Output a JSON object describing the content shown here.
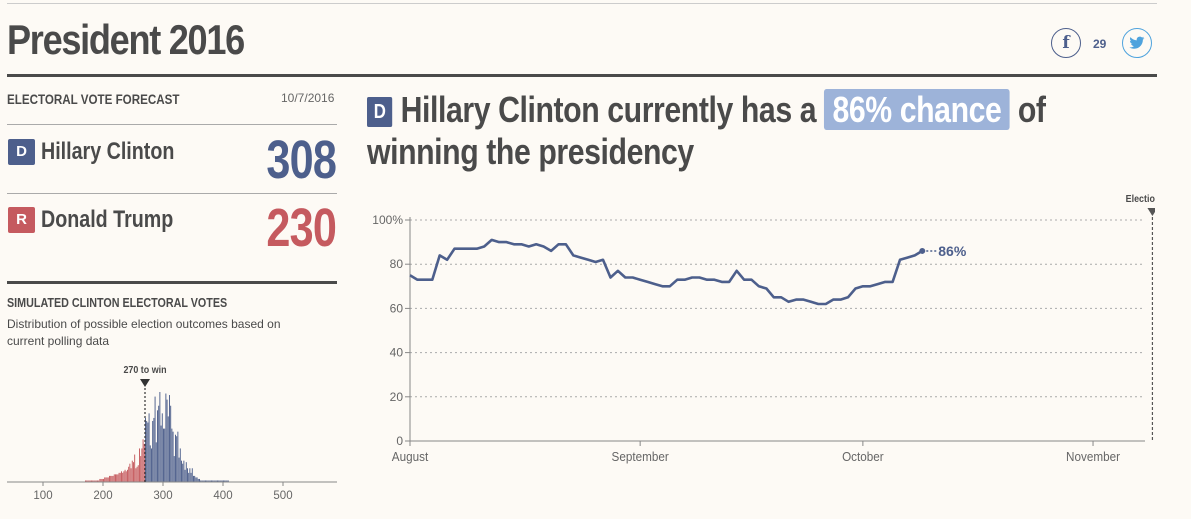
{
  "page": {
    "title": "President 2016"
  },
  "social": {
    "facebook_icon": "facebook-icon",
    "facebook_count": "29",
    "twitter_icon": "twitter-icon",
    "facebook_glyph": "f",
    "twitter_glyph": "🐦"
  },
  "forecast": {
    "label": "ELECTORAL VOTE FORECAST",
    "date": "10/7/2016",
    "candidates": [
      {
        "party": "D",
        "name": "Hillary Clinton",
        "votes": "308",
        "color": "#4d5f8c"
      },
      {
        "party": "R",
        "name": "Donald Trump",
        "votes": "230",
        "color": "#c55a5f"
      }
    ]
  },
  "simulation": {
    "label": "SIMULATED CLINTON ELECTORAL VOTES",
    "description": "Distribution of possible election outcomes based on current polling data",
    "marker_label": "270 to win"
  },
  "headline": {
    "badge": "D",
    "before": "Hillary Clinton currently has a",
    "chance": "86% chance",
    "after": "of winning the presidency"
  },
  "chart_data": [
    {
      "type": "line",
      "title": "Hillary Clinton chance of winning the presidency",
      "ylim": [
        0,
        100
      ],
      "yticks": [
        0,
        20,
        40,
        60,
        80,
        100
      ],
      "ytick_labels": [
        "0",
        "20",
        "40",
        "60",
        "80",
        "100%"
      ],
      "xlim_days": [
        0,
        99
      ],
      "xticks": [
        {
          "day": 0,
          "label": "August"
        },
        {
          "day": 31,
          "label": "September"
        },
        {
          "day": 61,
          "label": "October"
        },
        {
          "day": 92,
          "label": "November"
        }
      ],
      "grid": true,
      "annotation": {
        "day": 100,
        "label": "Election Day"
      },
      "end_label": "86%",
      "series": [
        {
          "name": "Clinton",
          "color": "#4d5f8c",
          "values": [
            75,
            73,
            73,
            73,
            84,
            82,
            87,
            87,
            87,
            87,
            88,
            91,
            90,
            90,
            89,
            89,
            88,
            89,
            88,
            86,
            89,
            89,
            84,
            83,
            82,
            81,
            82,
            74,
            77,
            74,
            74,
            73,
            72,
            71,
            70,
            70,
            73,
            73,
            74,
            74,
            73,
            73,
            72,
            72,
            77,
            73,
            73,
            70,
            69,
            65,
            65,
            63,
            64,
            64,
            63,
            62,
            62,
            64,
            64,
            65,
            69,
            70,
            70,
            71,
            72,
            72,
            82,
            83,
            84,
            86
          ]
        }
      ]
    },
    {
      "type": "bar",
      "title": "Simulated Clinton electoral votes",
      "xlim": [
        40,
        590
      ],
      "xticks": [
        100,
        200,
        300,
        400,
        500
      ],
      "threshold": 270,
      "threshold_label": "270 to win",
      "bin_width": 2,
      "bin_start": 170,
      "values": [
        1,
        1,
        1,
        1,
        1,
        1,
        1,
        1,
        1,
        1,
        1,
        1,
        2,
        2,
        2,
        2,
        3,
        3,
        3,
        3,
        4,
        4,
        4,
        4,
        5,
        5,
        5,
        5,
        6,
        6,
        7,
        6,
        7,
        8,
        7,
        8,
        10,
        12,
        9,
        14,
        13,
        18,
        9,
        10,
        11,
        22,
        17,
        22,
        28,
        25,
        42,
        40,
        39,
        45,
        24,
        22,
        40,
        42,
        56,
        26,
        47,
        50,
        59,
        37,
        45,
        35,
        35,
        58,
        54,
        43,
        57,
        50,
        35,
        33,
        17,
        31,
        30,
        33,
        16,
        22,
        14,
        12,
        14,
        8,
        13,
        9,
        6,
        9,
        6,
        9,
        4,
        4,
        3,
        3,
        2,
        2,
        1,
        1,
        1,
        1,
        1,
        1,
        1,
        1,
        1,
        1,
        1,
        1,
        1,
        1,
        1,
        1,
        1,
        1,
        1,
        1,
        1,
        1,
        1,
        1
      ],
      "below_color": "#c55a5f",
      "above_color": "#4d5f8c"
    }
  ]
}
